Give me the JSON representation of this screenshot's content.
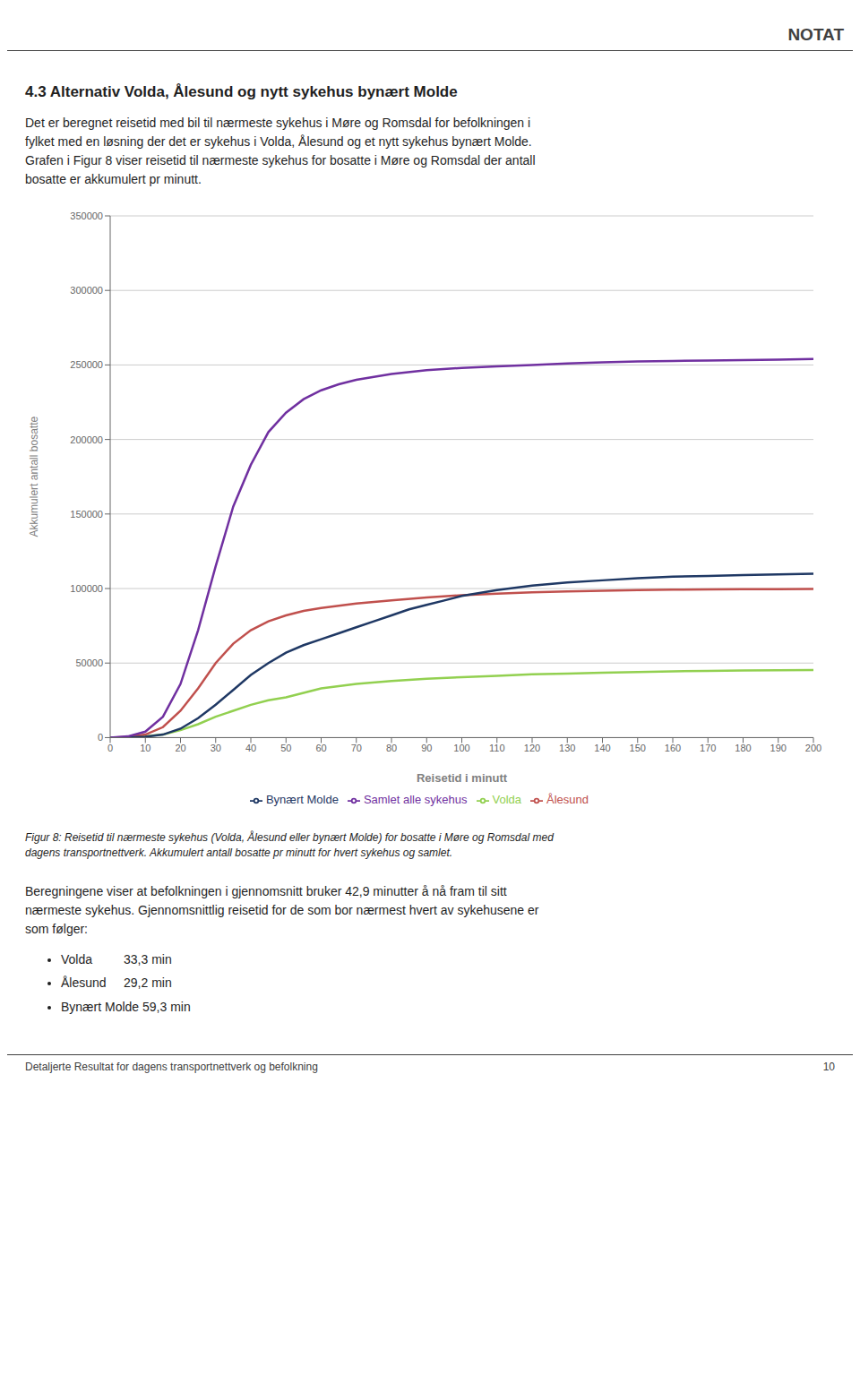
{
  "chart_data": {
    "type": "line",
    "annotations": [
      "NOTAT",
      "4.3  Alternativ Volda, Ålesund og nytt sykehus bynært Molde",
      "Det er beregnet reisetid med bil til nærmeste sykehus i Møre og Romsdal for befolkningen i\nfylket med en løsning der det er sykehus i Volda, Ålesund og et nytt sykehus bynært Molde.\nGrafen i Figur 8 viser reisetid til nærmeste sykehus for bosatte i Møre og Romsdal der antall\nbosatte er akkumulert pr minutt.",
      "Figur 8: Reisetid til nærmeste sykehus (Volda, Ålesund eller bynært Molde) for bosatte i Møre og Romsdal med\ndagens transportnettverk. Akkumulert antall bosatte pr minutt for hvert sykehus og samlet.",
      "Beregningene viser at befolkningen i gjennomsnitt bruker 42,9 minutter å nå fram til sitt\nnærmeste sykehus. Gjennomsnittlig reisetid for de som bor nærmest hvert av sykehusene er\nsom følger:",
      "Volda         33,3 min",
      "Ålesund     29,2 min",
      "Bynært Molde 59,3 min",
      "Detaljerte Resultat for dagens transportnettverk og befolkning",
      "10"
    ],
    "x_label": "Reisetid i minutt",
    "y_label": "Akkumulert antall bosatte",
    "xlim": [
      0,
      200
    ],
    "ylim": [
      0,
      350000
    ],
    "xticks": [
      0,
      10,
      20,
      30,
      40,
      50,
      60,
      70,
      80,
      90,
      100,
      110,
      120,
      130,
      140,
      150,
      160,
      170,
      180,
      190,
      200
    ],
    "yticks": [
      0,
      50000,
      100000,
      150000,
      200000,
      250000,
      300000,
      350000
    ],
    "grid": "y",
    "legend": "bottom",
    "series": [
      {
        "name": "Volda",
        "color": "#92d050",
        "x": [
          0,
          5,
          10,
          15,
          20,
          25,
          30,
          35,
          40,
          45,
          50,
          55,
          60,
          70,
          80,
          90,
          100,
          110,
          120,
          130,
          140,
          150,
          160,
          170,
          180,
          190,
          200
        ],
        "values": [
          0,
          200,
          800,
          2000,
          5000,
          9000,
          14000,
          18000,
          22000,
          25000,
          27000,
          30000,
          33000,
          36000,
          38000,
          39500,
          40500,
          41500,
          42500,
          43000,
          43500,
          44000,
          44500,
          44800,
          45000,
          45200,
          45400
        ]
      },
      {
        "name": "Ålesund",
        "color": "#c0504d",
        "x": [
          0,
          5,
          10,
          15,
          20,
          25,
          30,
          35,
          40,
          45,
          50,
          55,
          60,
          65,
          70,
          80,
          90,
          100,
          110,
          120,
          130,
          140,
          150,
          160,
          170,
          180,
          190,
          200
        ],
        "values": [
          0,
          400,
          2000,
          7000,
          18000,
          33000,
          50000,
          63000,
          72000,
          78000,
          82000,
          85000,
          87000,
          88500,
          90000,
          92000,
          94000,
          95500,
          96500,
          97500,
          98000,
          98500,
          99000,
          99200,
          99400,
          99500,
          99600,
          99700
        ]
      },
      {
        "name": "Bynært Molde",
        "color": "#1f3864",
        "x": [
          0,
          5,
          10,
          15,
          20,
          25,
          30,
          35,
          40,
          45,
          50,
          55,
          60,
          65,
          70,
          75,
          80,
          85,
          90,
          95,
          100,
          110,
          120,
          130,
          140,
          150,
          160,
          170,
          180,
          190,
          200
        ],
        "values": [
          0,
          100,
          500,
          2000,
          6000,
          13000,
          22000,
          32000,
          42000,
          50000,
          57000,
          62000,
          66000,
          70000,
          74000,
          78000,
          82000,
          86000,
          89000,
          92000,
          95000,
          99000,
          102000,
          104000,
          105500,
          107000,
          108000,
          108500,
          109000,
          109500,
          110000
        ]
      },
      {
        "name": "Samlet alle sykehus",
        "color": "#7030a0",
        "x": [
          0,
          5,
          10,
          15,
          20,
          25,
          30,
          35,
          40,
          45,
          50,
          55,
          60,
          65,
          70,
          80,
          90,
          100,
          110,
          120,
          130,
          140,
          150,
          160,
          170,
          180,
          190,
          200
        ],
        "values": [
          0,
          800,
          4000,
          14000,
          36000,
          72000,
          115000,
          155000,
          183000,
          205000,
          218000,
          227000,
          233000,
          237000,
          240000,
          244000,
          246500,
          248000,
          249000,
          250000,
          251000,
          251800,
          252300,
          252700,
          253000,
          253300,
          253600,
          254000
        ]
      }
    ]
  }
}
